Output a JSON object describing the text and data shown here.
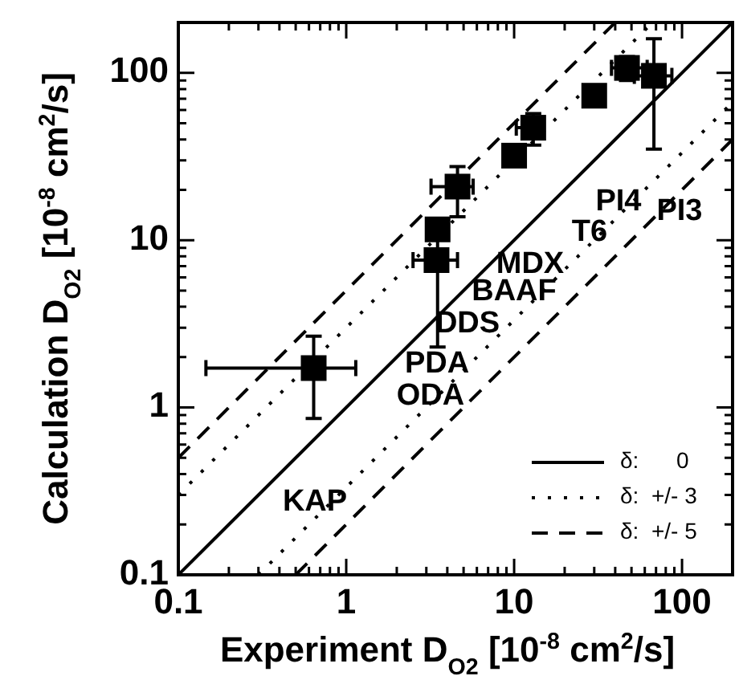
{
  "chart_data": {
    "type": "scatter",
    "xlabel": "Experiment D$_{O2}$ [10$^{-8}$ cm$^{2}$/s]",
    "ylabel": "Calculation D$_{O2}$ [10$^{-8}$ cm$^{2}$/s]",
    "log": "xy",
    "xlim": [
      0.1,
      200
    ],
    "ylim": [
      0.1,
      200
    ],
    "xticks": [
      0.1,
      {
        "value": 0.2,
        "label": null
      },
      {
        "value": 0.3,
        "label": null
      },
      {
        "value": 0.4,
        "label": null
      },
      {
        "value": 0.5,
        "label": null
      },
      {
        "value": 0.6,
        "label": null
      },
      {
        "value": 0.7,
        "label": null
      },
      {
        "value": 0.8,
        "label": null
      },
      {
        "value": 0.9,
        "label": null
      },
      1,
      {
        "value": 2,
        "label": null
      },
      {
        "value": 3,
        "label": null
      },
      {
        "value": 4,
        "label": null
      },
      {
        "value": 5,
        "label": null
      },
      {
        "value": 6,
        "label": null
      },
      {
        "value": 7,
        "label": null
      },
      {
        "value": 8,
        "label": null
      },
      {
        "value": 9,
        "label": null
      },
      10,
      {
        "value": 20,
        "label": null
      },
      {
        "value": 30,
        "label": null
      },
      {
        "value": 40,
        "label": null
      },
      {
        "value": 50,
        "label": null
      },
      {
        "value": 60,
        "label": null
      },
      {
        "value": 70,
        "label": null
      },
      {
        "value": 80,
        "label": null
      },
      {
        "value": 90,
        "label": null
      },
      100,
      {
        "value": 200,
        "label": null
      }
    ],
    "yticks": [
      0.1,
      {
        "value": 0.2,
        "label": null
      },
      {
        "value": 0.3,
        "label": null
      },
      {
        "value": 0.4,
        "label": null
      },
      {
        "value": 0.5,
        "label": null
      },
      {
        "value": 0.6,
        "label": null
      },
      {
        "value": 0.7,
        "label": null
      },
      {
        "value": 0.8,
        "label": null
      },
      {
        "value": 0.9,
        "label": null
      },
      1,
      {
        "value": 2,
        "label": null
      },
      {
        "value": 3,
        "label": null
      },
      {
        "value": 4,
        "label": null
      },
      {
        "value": 5,
        "label": null
      },
      {
        "value": 6,
        "label": null
      },
      {
        "value": 7,
        "label": null
      },
      {
        "value": 8,
        "label": null
      },
      {
        "value": 9,
        "label": null
      },
      10,
      {
        "value": 20,
        "label": null
      },
      {
        "value": 30,
        "label": null
      },
      {
        "value": 40,
        "label": null
      },
      {
        "value": 50,
        "label": null
      },
      {
        "value": 60,
        "label": null
      },
      {
        "value": 70,
        "label": null
      },
      {
        "value": 80,
        "label": null
      },
      {
        "value": 90,
        "label": null
      },
      100,
      {
        "value": 200,
        "label": null
      }
    ],
    "legend": "bottom right",
    "series": [
      {
        "color": "#000000",
        "marker": "square",
        "x": [
          0.64,
          3.45,
          3.5,
          4.6,
          10,
          13,
          30,
          47,
          68
        ],
        "values": [
          1.72,
          7.6,
          11.6,
          20.9,
          32,
          47,
          73,
          107,
          96
        ],
        "errors": [
          [
            0.86,
            2.67
          ],
          null,
          [
            2.3,
            13
          ],
          [
            13.8,
            27.5
          ],
          null,
          [
            37,
            57
          ],
          null,
          [
            90,
            125
          ],
          [
            35,
            160
          ]
        ],
        "xerrors": [
          [
            0.146,
            1.14
          ],
          [
            2.5,
            4.6
          ],
          null,
          [
            3.2,
            5.7
          ],
          null,
          [
            10.3,
            15
          ],
          null,
          [
            38,
            62
          ],
          [
            52,
            87
          ]
        ]
      },
      {
        "type": "line",
        "name": "δ:      0",
        "color": "#000000",
        "line_style": "solid",
        "x": [
          0.1,
          200
        ],
        "values": [
          0.1,
          200
        ]
      },
      {
        "type": "line",
        "name": "δ:  +/- 3",
        "color": "#000000",
        "line_style": "dotted",
        "x": [
          0.1,
          66.7
        ],
        "values": [
          0.3,
          200
        ]
      },
      {
        "type": "line",
        "color": "#000000",
        "line_style": "dotted",
        "x": [
          0.3,
          200
        ],
        "values": [
          0.1,
          66.7
        ]
      },
      {
        "type": "line",
        "name": "δ:  +/- 5",
        "color": "#000000",
        "line_style": "dashed",
        "x": [
          0.1,
          40
        ],
        "values": [
          0.5,
          200
        ]
      },
      {
        "type": "line",
        "color": "#000000",
        "line_style": "dashed",
        "x": [
          0.5,
          200
        ],
        "values": [
          0.1,
          40
        ]
      }
    ],
    "annotations": [
      "KAP",
      "ODA",
      "PDA",
      "DDS",
      "BAAF",
      "MDX",
      "T6",
      "PI4",
      "PI3"
    ]
  }
}
